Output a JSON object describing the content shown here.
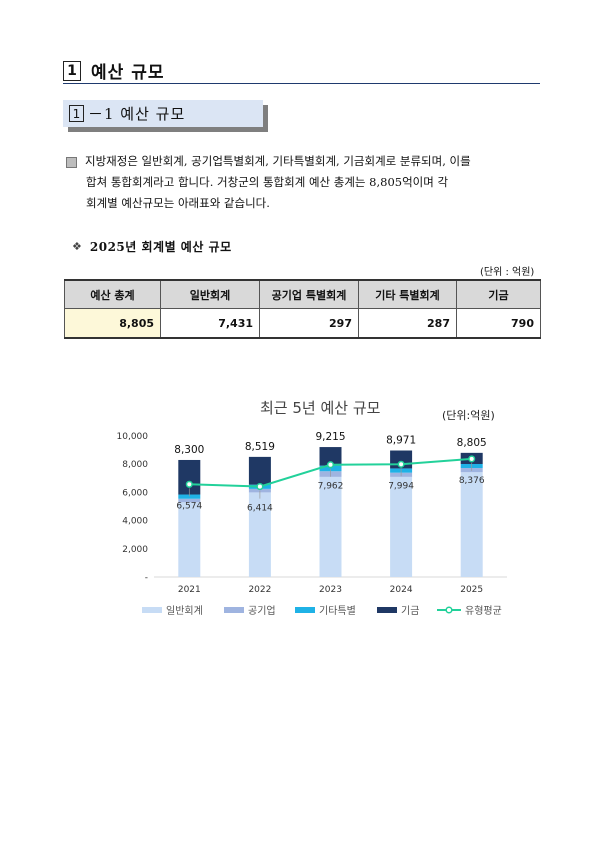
{
  "heading1": {
    "number": "1",
    "title": "예산 규모"
  },
  "heading2": {
    "number": "1",
    "title": "－1 예산 규모"
  },
  "paragraph": {
    "lines": [
      "지방재정은 일반회계, 공기업특별회계, 기타특별회계, 기금회계로 분류되며, 이를",
      "합쳐 통합회계라고 합니다. 거창군의 통합회계 예산 총계는 8,805억이며 각",
      "회계별 예산규모는 아래표와 같습니다."
    ]
  },
  "table_section": {
    "marker": "❖",
    "title": "2025년 회계별 예산 규모",
    "unit": "(단위 : 억원)",
    "headers": [
      "예산 총계",
      "일반회계",
      "공기업 특별회계",
      "기타 특별회계",
      "기금"
    ],
    "values": [
      "8,805",
      "7,431",
      "297",
      "287",
      "790"
    ]
  },
  "chart_data": {
    "type": "bar",
    "title": "최근 5년 예산 규모",
    "unit_label": "(단위:억원)",
    "categories": [
      "2021",
      "2022",
      "2023",
      "2024",
      "2025"
    ],
    "stacked": true,
    "ylim": [
      0,
      10000
    ],
    "yticks": [
      0,
      2000,
      4000,
      6000,
      8000,
      10000
    ],
    "ytick_labels": [
      "-",
      "2,000",
      "4,000",
      "6,000",
      "8,000",
      "10,000"
    ],
    "series": [
      {
        "name": "일반회계",
        "color": "#c7dcf5",
        "values": [
          5300,
          6000,
          7100,
          7100,
          7431
        ]
      },
      {
        "name": "공기업",
        "color": "#9fb4e0",
        "values": [
          250,
          250,
          400,
          300,
          297
        ]
      },
      {
        "name": "기타특별",
        "color": "#1fb2e6",
        "values": [
          300,
          300,
          400,
          300,
          287
        ]
      },
      {
        "name": "기금",
        "color": "#1f3864",
        "values": [
          2450,
          1969,
          1315,
          1271,
          790
        ]
      }
    ],
    "line": {
      "name": "유형평균",
      "color": "#22d19a",
      "values": [
        6574,
        6414,
        7962,
        7994,
        8376
      ],
      "labels": [
        "6,574",
        "6,414",
        "7,962",
        "7,994",
        "8,376"
      ]
    },
    "total_labels": [
      "8,300",
      "8,519",
      "9,215",
      "8,971",
      "8,805"
    ],
    "totals": [
      8300,
      8519,
      9215,
      8971,
      8805
    ]
  }
}
